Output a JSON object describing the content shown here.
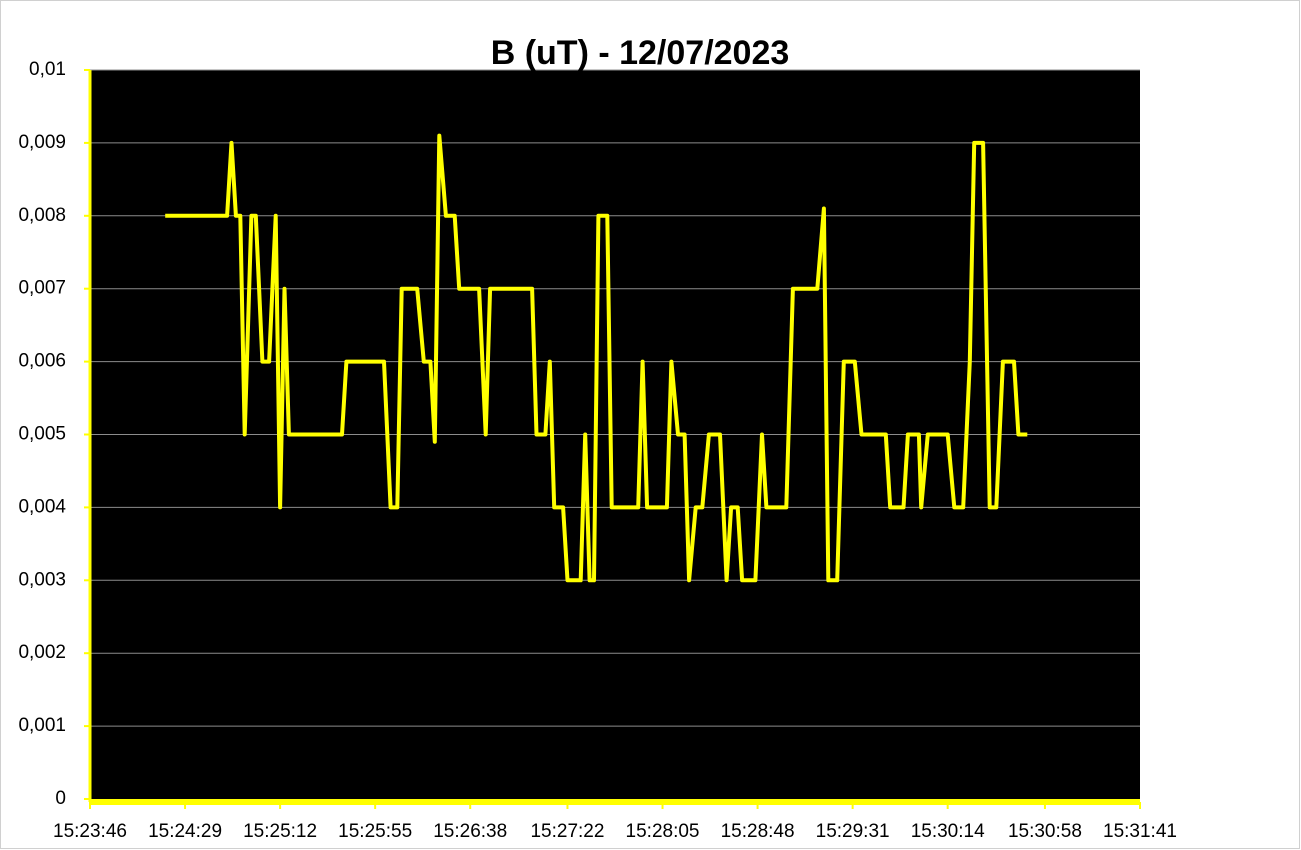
{
  "chart_data": {
    "type": "line",
    "title": "B (uT) - 12/07/2023",
    "x": [
      "15:24:20",
      "15:24:48",
      "15:24:50",
      "15:24:52",
      "15:24:54",
      "15:24:56",
      "15:24:59",
      "15:25:01",
      "15:25:04",
      "15:25:07",
      "15:25:10",
      "15:25:12",
      "15:25:14",
      "15:25:16",
      "15:25:40",
      "15:25:42",
      "15:25:59",
      "15:26:02",
      "15:26:05",
      "15:26:07",
      "15:26:14",
      "15:26:17",
      "15:26:20",
      "15:26:22",
      "15:26:24",
      "15:26:27",
      "15:26:31",
      "15:26:33",
      "15:26:42",
      "15:26:45",
      "15:26:47",
      "15:27:06",
      "15:27:08",
      "15:27:12",
      "15:27:14",
      "15:27:16",
      "15:27:20",
      "15:27:22",
      "15:27:28",
      "15:27:30",
      "15:27:32",
      "15:27:34",
      "15:27:36",
      "15:27:40",
      "15:27:42",
      "15:27:54",
      "15:27:56",
      "15:27:58",
      "15:28:07",
      "15:28:09",
      "15:28:12",
      "15:28:15",
      "15:28:17",
      "15:28:20",
      "15:28:23",
      "15:28:26",
      "15:28:31",
      "15:28:34",
      "15:28:36",
      "15:28:39",
      "15:28:41",
      "15:28:47",
      "15:28:50",
      "15:28:52",
      "15:29:01",
      "15:29:04",
      "15:29:15",
      "15:29:18",
      "15:29:20",
      "15:29:24",
      "15:29:27",
      "15:29:32",
      "15:29:35",
      "15:29:46",
      "15:29:48",
      "15:29:54",
      "15:29:56",
      "15:30:01",
      "15:30:02",
      "15:30:05",
      "15:30:14",
      "15:30:17",
      "15:30:21",
      "15:30:24",
      "15:30:26",
      "15:30:30",
      "15:30:33",
      "15:30:36",
      "15:30:39",
      "15:30:44",
      "15:30:46",
      "15:30:50"
    ],
    "series": [
      {
        "name": "B (uT)",
        "color": "#ffff00",
        "values": [
          0.008,
          0.008,
          0.009,
          0.008,
          0.008,
          0.005,
          0.008,
          0.008,
          0.006,
          0.006,
          0.008,
          0.004,
          0.007,
          0.005,
          0.005,
          0.006,
          0.006,
          0.004,
          0.004,
          0.007,
          0.007,
          0.006,
          0.006,
          0.0049,
          0.0091,
          0.008,
          0.008,
          0.007,
          0.007,
          0.005,
          0.007,
          0.007,
          0.005,
          0.005,
          0.006,
          0.004,
          0.004,
          0.003,
          0.003,
          0.005,
          0.003,
          0.003,
          0.008,
          0.008,
          0.004,
          0.004,
          0.006,
          0.004,
          0.004,
          0.006,
          0.005,
          0.005,
          0.003,
          0.004,
          0.004,
          0.005,
          0.005,
          0.003,
          0.004,
          0.004,
          0.003,
          0.003,
          0.005,
          0.004,
          0.004,
          0.007,
          0.007,
          0.0081,
          0.003,
          0.003,
          0.006,
          0.006,
          0.005,
          0.005,
          0.004,
          0.004,
          0.005,
          0.005,
          0.004,
          0.005,
          0.005,
          0.004,
          0.004,
          0.006,
          0.009,
          0.009,
          0.004,
          0.004,
          0.006,
          0.006,
          0.005,
          0.005
        ]
      }
    ],
    "xlim": [
      "15:23:46",
      "15:31:41"
    ],
    "xticks": [
      "15:23:46",
      "15:24:29",
      "15:25:12",
      "15:25:55",
      "15:26:38",
      "15:27:22",
      "15:28:05",
      "15:28:48",
      "15:29:31",
      "15:30:14",
      "15:30:58",
      "15:31:41"
    ],
    "ylim": [
      0,
      0.01
    ],
    "yticks": [
      0,
      {
        "value": 0.001,
        "label": "0,001"
      },
      {
        "value": 0.002,
        "label": "0,002"
      },
      {
        "value": 0.003,
        "label": "0,003"
      },
      {
        "value": 0.004,
        "label": "0,004"
      },
      {
        "value": 0.005,
        "label": "0,005"
      },
      {
        "value": 0.006,
        "label": "0,006"
      },
      {
        "value": 0.007,
        "label": "0,007"
      },
      {
        "value": 0.008,
        "label": "0,008"
      },
      {
        "value": 0.009,
        "label": "0,009"
      },
      {
        "value": 0.01,
        "label": "0,01"
      }
    ],
    "grid": true,
    "plot_background": "#000000"
  }
}
